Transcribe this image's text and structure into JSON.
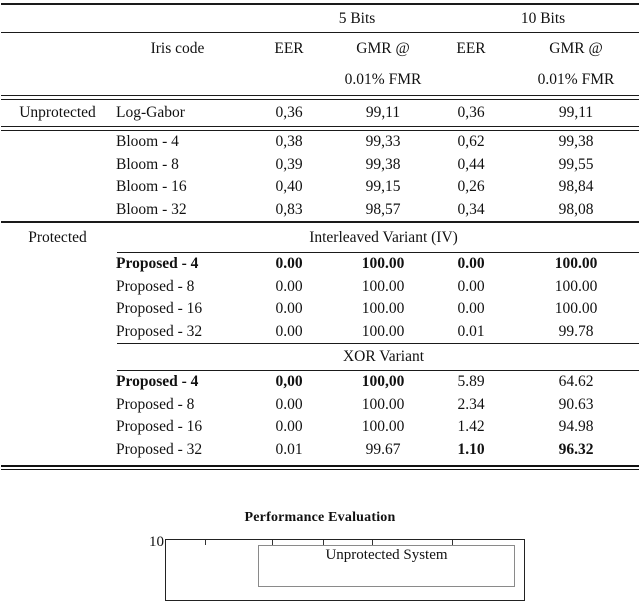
{
  "table": {
    "top_group_headers": {
      "five": "5 Bits",
      "ten": "10 Bits"
    },
    "headers": {
      "iris_code": "Iris code",
      "eer1": "EER",
      "gmr1a": "GMR @",
      "gmr1b": "0.01% FMR",
      "eer2": "EER",
      "gmr2a": "GMR @",
      "gmr2b": "0.01% FMR"
    },
    "unprotected_rows": [
      {
        "group": "Unprotected",
        "label": "Log-Gabor",
        "values": [
          "0,36",
          "99,11",
          "0,36",
          "99,11"
        ]
      }
    ],
    "bloom_rows": [
      {
        "group": "",
        "label": "Bloom - 4",
        "values": [
          "0,38",
          "99,33",
          "0,62",
          "99,38"
        ]
      },
      {
        "group": "",
        "label": "Bloom - 8",
        "values": [
          "0,39",
          "99,38",
          "0,44",
          "99,55"
        ]
      },
      {
        "group": "",
        "label": "Bloom - 16",
        "values": [
          "0,40",
          "99,15",
          "0,26",
          "98,84"
        ]
      },
      {
        "group": "",
        "label": "Bloom - 32",
        "values": [
          "0,83",
          "98,57",
          "0,34",
          "98,08"
        ]
      }
    ],
    "protected_label": "Protected",
    "iv": {
      "heading": "Interleaved Variant (IV)",
      "rows": [
        {
          "group": "",
          "label": "Proposed - 4",
          "bold_label": true,
          "values": [
            "0.00",
            "100.00",
            "0.00",
            "100.00"
          ],
          "bold": [
            true,
            true,
            true,
            true
          ]
        },
        {
          "group": "",
          "label": "Proposed - 8",
          "values": [
            "0.00",
            "100.00",
            "0.00",
            "100.00"
          ]
        },
        {
          "group": "",
          "label": "Proposed - 16",
          "values": [
            "0.00",
            "100.00",
            "0.00",
            "100.00"
          ]
        },
        {
          "group": "",
          "label": "Proposed - 32",
          "values": [
            "0.00",
            "100.00",
            "0.01",
            "99.78"
          ]
        }
      ]
    },
    "xor": {
      "heading": "XOR Variant",
      "rows": [
        {
          "group": "",
          "label": "Proposed - 4",
          "bold_label": true,
          "values": [
            "0,00",
            "100,00",
            "5.89",
            "64.62"
          ],
          "bold": [
            true,
            true,
            false,
            false
          ]
        },
        {
          "group": "",
          "label": "Proposed - 8",
          "values": [
            "0.00",
            "100.00",
            "2.34",
            "90.63"
          ]
        },
        {
          "group": "",
          "label": "Proposed - 16",
          "values": [
            "0.00",
            "100.00",
            "1.42",
            "94.98"
          ]
        },
        {
          "group": "",
          "label": "Proposed - 32",
          "values": [
            "0.01",
            "99.67",
            "1.10",
            "96.32"
          ],
          "bold": [
            false,
            false,
            true,
            true
          ]
        }
      ]
    }
  },
  "figure": {
    "title": "Performance Evaluation",
    "y_tick": "10",
    "legend_item": "Unprotected System"
  }
}
